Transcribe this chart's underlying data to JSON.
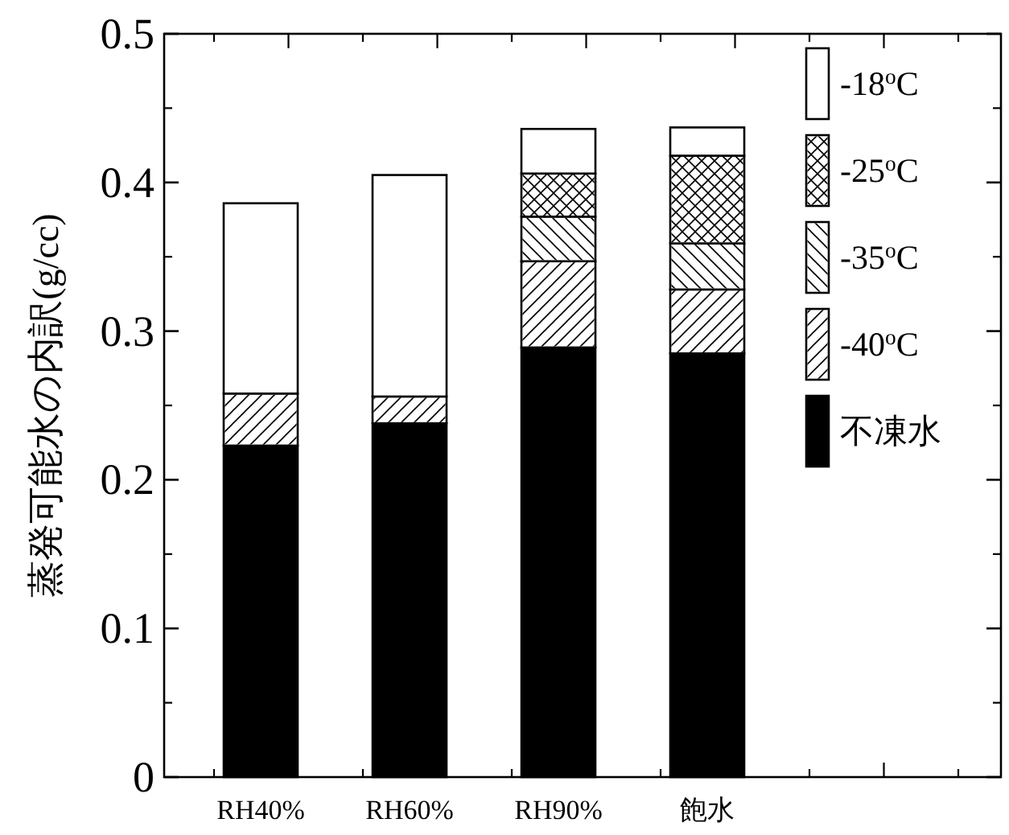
{
  "chart_data": {
    "type": "bar",
    "stacked": true,
    "ylabel": "蒸発可能水の内訳(g/cc)",
    "categories": [
      "RH40%",
      "RH60%",
      "RH90%",
      "飽水"
    ],
    "series": [
      {
        "name": "不凍水",
        "color": "#000000",
        "values": [
          0.223,
          0.238,
          0.289,
          0.285
        ]
      },
      {
        "name": "-40$^{o}$C",
        "color": "#ffffff",
        "values": [
          0.035,
          0.018,
          0.058,
          0.043
        ]
      },
      {
        "name": "-35$^{o}$C",
        "color": "#ffffff",
        "values": [
          0,
          0,
          0.03,
          0.031
        ]
      },
      {
        "name": "-25$^{o}$C",
        "color": "#ffffff",
        "values": [
          0,
          0,
          0.029,
          0.059
        ]
      },
      {
        "name": "-18$^{o}$C",
        "color": "#ffffff",
        "values": [
          0.128,
          0.149,
          0.03,
          0.019
        ]
      }
    ],
    "ylim": [
      0,
      0.5
    ],
    "yticks": [
      0,
      0.1,
      0.2,
      0.3,
      0.4,
      0.5
    ],
    "legend": "top right"
  }
}
